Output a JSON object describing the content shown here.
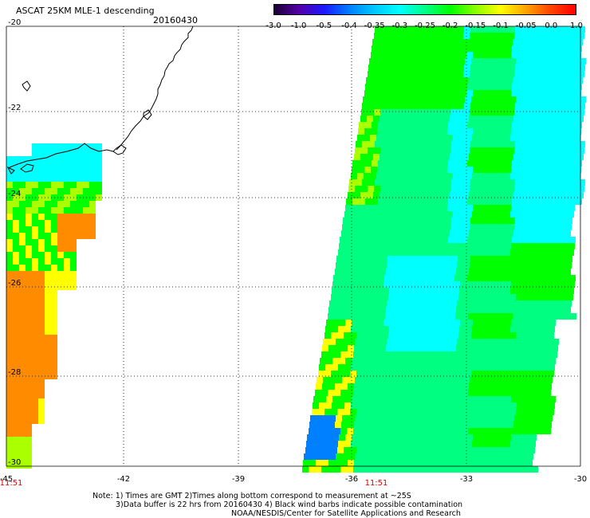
{
  "header": {
    "title": "ASCAT 25KM MLE-1 descending",
    "date": "20160430"
  },
  "colorbar": {
    "ticks": [
      "-3.0",
      "-1.0",
      "-0.5",
      "-0.4",
      "-0.35",
      "-0.3",
      "-0.25",
      "-0.2",
      "-0.15",
      "-0.1",
      "-0.05",
      "0.0",
      "1.0"
    ],
    "colors": [
      "#1a0033",
      "#5500aa",
      "#1a1aff",
      "#0080ff",
      "#00c8ff",
      "#00ffff",
      "#00ff88",
      "#00ff00",
      "#88ff00",
      "#ffff00",
      "#ffa500",
      "#ff4400",
      "#ff0000"
    ]
  },
  "axes": {
    "lon_labels": [
      "-45",
      "-42",
      "-39",
      "-36",
      "-33",
      "-30"
    ],
    "lat_labels": [
      "-20",
      "-22",
      "-24",
      "-26",
      "-28",
      "-30"
    ]
  },
  "time_labels": [
    "11:51",
    "11:51"
  ],
  "notes": [
    "Note: 1) Times are GMT 2)Times along bottom correspond to measurement at ~25S",
    "3)Data buffer is 22 hrs from 20160430 4) Black wind barbs indicate possible contamination",
    "NOAA/NESDIS/Center for Satellite Applications and Research"
  ],
  "palette": {
    "orange": "#ff8c00",
    "yellow": "#ffff00",
    "yellowgreen": "#aaff00",
    "green": "#00ff00",
    "springgreen": "#00ff80",
    "cyan": "#00ffff",
    "skyblue": "#00c8ff",
    "blue": "#0080ff",
    "title_red": "#dd0000"
  }
}
